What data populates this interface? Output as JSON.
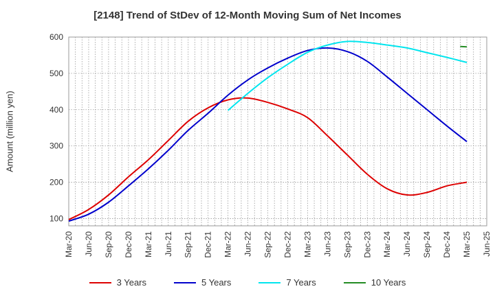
{
  "chart_data": {
    "type": "line",
    "title": "[2148]  Trend of StDev of 12-Month Moving Sum of Net Incomes",
    "xlabel": "",
    "ylabel": "Amount (million yen)",
    "ylim": [
      80,
      600
    ],
    "yticks": [
      100,
      200,
      300,
      400,
      500,
      600
    ],
    "xticks": [
      "Mar-20",
      "Jun-20",
      "Sep-20",
      "Dec-20",
      "Mar-21",
      "Jun-21",
      "Sep-21",
      "Dec-21",
      "Mar-22",
      "Jun-22",
      "Sep-22",
      "Dec-22",
      "Mar-23",
      "Jun-23",
      "Sep-23",
      "Dec-23",
      "Mar-24",
      "Jun-24",
      "Sep-24",
      "Dec-24",
      "Mar-25",
      "Jun-25"
    ],
    "grid": true,
    "legend_position": "bottom",
    "series": [
      {
        "name": "3 Years",
        "color": "#dd0000",
        "points": [
          [
            "Mar-20",
            97
          ],
          [
            "Jun-20",
            125
          ],
          [
            "Sep-20",
            165
          ],
          [
            "Dec-20",
            215
          ],
          [
            "Mar-21",
            262
          ],
          [
            "Jun-21",
            315
          ],
          [
            "Sep-21",
            368
          ],
          [
            "Dec-21",
            405
          ],
          [
            "Mar-22",
            427
          ],
          [
            "Jun-22",
            432
          ],
          [
            "Sep-22",
            420
          ],
          [
            "Dec-22",
            402
          ],
          [
            "Mar-23",
            378
          ],
          [
            "Jun-23",
            328
          ],
          [
            "Sep-23",
            275
          ],
          [
            "Dec-23",
            222
          ],
          [
            "Mar-24",
            182
          ],
          [
            "Jun-24",
            165
          ],
          [
            "Sep-24",
            172
          ],
          [
            "Dec-24",
            190
          ],
          [
            "Mar-25",
            200
          ]
        ]
      },
      {
        "name": "5 Years",
        "color": "#0000cc",
        "points": [
          [
            "Mar-20",
            93
          ],
          [
            "Jun-20",
            112
          ],
          [
            "Sep-20",
            145
          ],
          [
            "Dec-20",
            190
          ],
          [
            "Mar-21",
            237
          ],
          [
            "Jun-21",
            288
          ],
          [
            "Sep-21",
            343
          ],
          [
            "Dec-21",
            390
          ],
          [
            "Mar-22",
            440
          ],
          [
            "Jun-22",
            482
          ],
          [
            "Sep-22",
            515
          ],
          [
            "Dec-22",
            542
          ],
          [
            "Mar-23",
            563
          ],
          [
            "Jun-23",
            570
          ],
          [
            "Sep-23",
            560
          ],
          [
            "Dec-23",
            533
          ],
          [
            "Mar-24",
            490
          ],
          [
            "Jun-24",
            445
          ],
          [
            "Sep-24",
            400
          ],
          [
            "Dec-24",
            355
          ],
          [
            "Mar-25",
            312
          ]
        ]
      },
      {
        "name": "7 Years",
        "color": "#00e5ee",
        "points": [
          [
            "Mar-22",
            398
          ],
          [
            "Jun-22",
            445
          ],
          [
            "Sep-22",
            488
          ],
          [
            "Dec-22",
            525
          ],
          [
            "Mar-23",
            558
          ],
          [
            "Jun-23",
            578
          ],
          [
            "Sep-23",
            588
          ],
          [
            "Dec-23",
            585
          ],
          [
            "Mar-24",
            578
          ],
          [
            "Jun-24",
            570
          ],
          [
            "Sep-24",
            557
          ],
          [
            "Dec-24",
            544
          ],
          [
            "Mar-25",
            530
          ]
        ]
      },
      {
        "name": "10 Years",
        "color": "#228b22",
        "points": [
          [
            "Feb-25",
            574
          ],
          [
            "Mar-25",
            573
          ]
        ]
      }
    ]
  }
}
